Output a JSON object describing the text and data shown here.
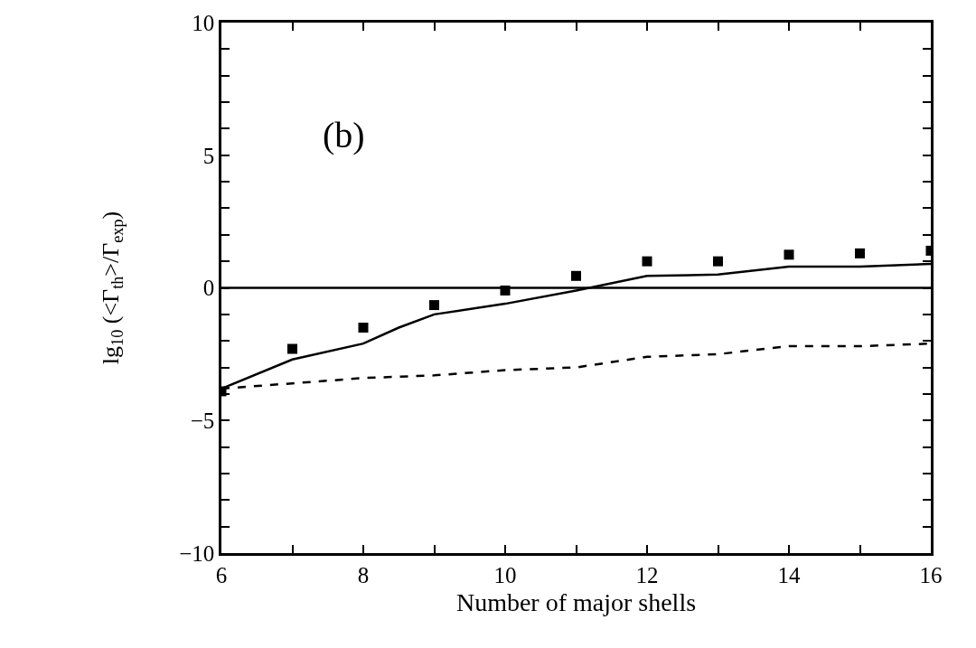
{
  "chart_data": {
    "type": "line",
    "xlabel": "Number of major shells",
    "ylabel": "lg$_{10}$ (<Γ$_{th}$>/Γ$_{exp}$)",
    "annotations": [
      "(b)"
    ],
    "xlim": [
      6,
      16
    ],
    "xticks": [
      6,
      {
        "value": 7,
        "label": null
      },
      8,
      {
        "value": 9,
        "label": null
      },
      10,
      {
        "value": 11,
        "label": null
      },
      12,
      {
        "value": 13,
        "label": null
      },
      14,
      {
        "value": 15,
        "label": null
      },
      16
    ],
    "ylim": [
      -10,
      10
    ],
    "yticks": [
      -10,
      {
        "value": -9,
        "label": null
      },
      {
        "value": -8,
        "label": null
      },
      {
        "value": -7,
        "label": null
      },
      {
        "value": -6,
        "label": null
      },
      -5,
      {
        "value": -4,
        "label": null
      },
      {
        "value": -3,
        "label": null
      },
      {
        "value": -2,
        "label": null
      },
      {
        "value": -1,
        "label": null
      },
      0,
      {
        "value": 1,
        "label": null
      },
      {
        "value": 2,
        "label": null
      },
      {
        "value": 3,
        "label": null
      },
      {
        "value": 4,
        "label": null
      },
      5,
      {
        "value": 6,
        "label": null
      },
      {
        "value": 7,
        "label": null
      },
      {
        "value": 8,
        "label": null
      },
      {
        "value": 9,
        "label": null
      },
      10
    ],
    "grid": false,
    "ref_lines": [
      {
        "axis": "y",
        "value": 0,
        "color": "#000000",
        "line_style": "solid"
      }
    ],
    "series": [
      {
        "type": "scatter",
        "marker": "square",
        "color": "#000000",
        "x": [
          6,
          7,
          8,
          9,
          10,
          11,
          12,
          13,
          14,
          15,
          16
        ],
        "values": [
          -3.9,
          -2.3,
          -1.5,
          -0.65,
          -0.1,
          0.45,
          1.0,
          1.0,
          1.25,
          1.3,
          1.4
        ]
      },
      {
        "line_style": "solid",
        "color": "#000000",
        "x": [
          6,
          7,
          8,
          8.5,
          9,
          10,
          11,
          12,
          13,
          14,
          15,
          16
        ],
        "values": [
          -3.8,
          -2.7,
          -2.1,
          -1.5,
          -1.0,
          -0.6,
          -0.1,
          0.45,
          0.5,
          0.8,
          0.8,
          0.9
        ]
      },
      {
        "line_style": "dashed",
        "color": "#000000",
        "x": [
          6,
          7,
          8,
          9,
          10,
          11,
          12,
          13,
          14,
          15,
          16
        ],
        "values": [
          -3.8,
          -3.6,
          -3.4,
          -3.3,
          -3.1,
          -3.0,
          -2.6,
          -2.5,
          -2.2,
          -2.2,
          -2.1
        ]
      }
    ]
  }
}
